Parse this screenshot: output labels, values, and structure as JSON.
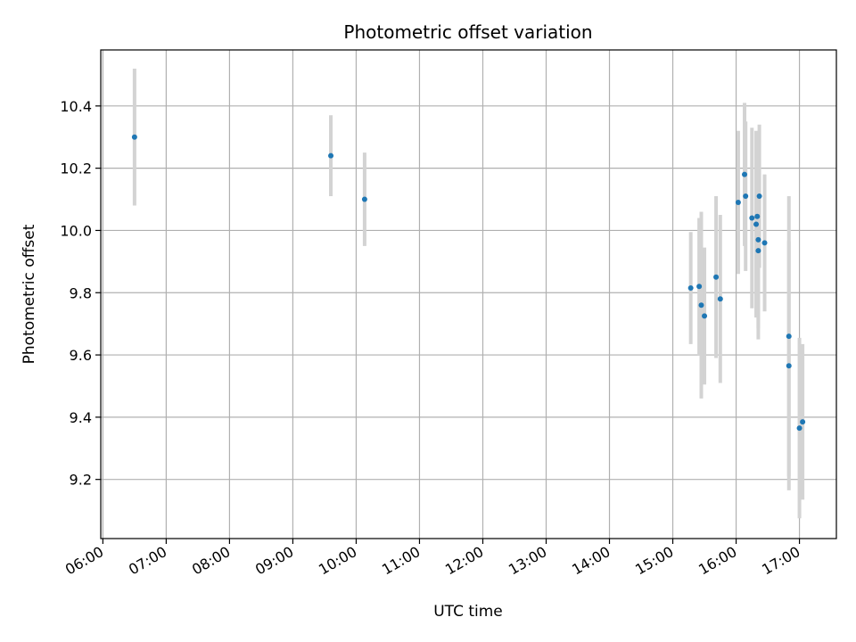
{
  "chart_data": {
    "type": "scatter",
    "title": "Photometric offset variation",
    "xlabel": "UTC time",
    "ylabel": "Photometric offset",
    "x_tick_labels": [
      "06:00",
      "07:00",
      "08:00",
      "09:00",
      "10:00",
      "11:00",
      "12:00",
      "13:00",
      "14:00",
      "15:00",
      "16:00",
      "17:00"
    ],
    "y_tick_labels": [
      "9.2",
      "9.4",
      "9.6",
      "9.8",
      "10.0",
      "10.2",
      "10.4"
    ],
    "xlim": [
      "05:58",
      "17:35"
    ],
    "ylim": [
      9.01,
      10.58
    ],
    "grid": true,
    "colors": {
      "points": "#1f77b4",
      "errorbars": "#d3d3d3",
      "grid": "#b0b0b0"
    },
    "series": [
      {
        "points": [
          {
            "x": "06:30",
            "y": 10.3,
            "err": 0.22
          },
          {
            "x": "09:36",
            "y": 10.24,
            "err": 0.13
          },
          {
            "x": "10:08",
            "y": 10.1,
            "err": 0.15
          },
          {
            "x": "15:17",
            "y": 9.815,
            "err": 0.18
          },
          {
            "x": "15:25",
            "y": 9.82,
            "err": 0.22
          },
          {
            "x": "15:27",
            "y": 9.76,
            "err": 0.3
          },
          {
            "x": "15:30",
            "y": 9.725,
            "err": 0.22
          },
          {
            "x": "15:41",
            "y": 9.85,
            "err": 0.26
          },
          {
            "x": "15:45",
            "y": 9.78,
            "err": 0.27
          },
          {
            "x": "16:02",
            "y": 10.09,
            "err": 0.23
          },
          {
            "x": "16:08",
            "y": 10.18,
            "err": 0.23
          },
          {
            "x": "16:09",
            "y": 10.11,
            "err": 0.24
          },
          {
            "x": "16:15",
            "y": 10.04,
            "err": 0.29
          },
          {
            "x": "16:19",
            "y": 10.02,
            "err": 0.3
          },
          {
            "x": "16:20",
            "y": 10.045,
            "err": 0.27
          },
          {
            "x": "16:21",
            "y": 9.97,
            "err": 0.32
          },
          {
            "x": "16:21",
            "y": 9.935,
            "err": 0.25
          },
          {
            "x": "16:22",
            "y": 10.11,
            "err": 0.23
          },
          {
            "x": "16:27",
            "y": 9.96,
            "err": 0.22
          },
          {
            "x": "16:50",
            "y": 9.66,
            "err": 0.45
          },
          {
            "x": "16:50",
            "y": 9.565,
            "err": 0.4
          },
          {
            "x": "17:00",
            "y": 9.365,
            "err": 0.29
          },
          {
            "x": "17:03",
            "y": 9.385,
            "err": 0.25
          }
        ]
      }
    ]
  }
}
